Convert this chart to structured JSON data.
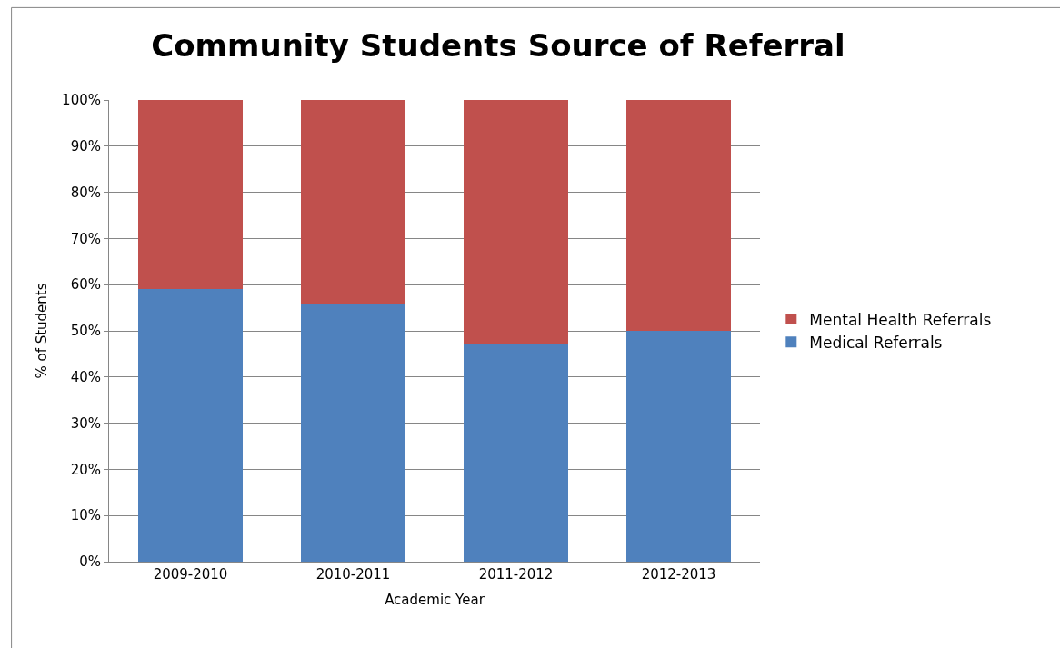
{
  "chart_data": {
    "type": "bar",
    "title": "Community Students Source of Referral",
    "xlabel": "Academic Year",
    "ylabel": "% of Students",
    "categories": [
      "2009-2010",
      "2010-2011",
      "2011-2012",
      "2012-2013"
    ],
    "stacked": true,
    "series": [
      {
        "name": "Medical Referrals",
        "color": "#4f81bd",
        "values": [
          59,
          56,
          47,
          50
        ]
      },
      {
        "name": "Mental Health Referrals",
        "color": "#c0504d",
        "values": [
          41,
          44,
          53,
          50
        ]
      }
    ],
    "ylim": [
      0,
      100
    ],
    "yticks": [
      {
        "value": 0,
        "label": "0%"
      },
      {
        "value": 10,
        "label": "10%"
      },
      {
        "value": 20,
        "label": "20%"
      },
      {
        "value": 30,
        "label": "30%"
      },
      {
        "value": 40,
        "label": "40%"
      },
      {
        "value": 50,
        "label": "50%"
      },
      {
        "value": 60,
        "label": "60%"
      },
      {
        "value": 70,
        "label": "70%"
      },
      {
        "value": 80,
        "label": "80%"
      },
      {
        "value": 90,
        "label": "90%"
      },
      {
        "value": 100,
        "label": "100%"
      }
    ],
    "grid": "y",
    "legend": "right"
  }
}
